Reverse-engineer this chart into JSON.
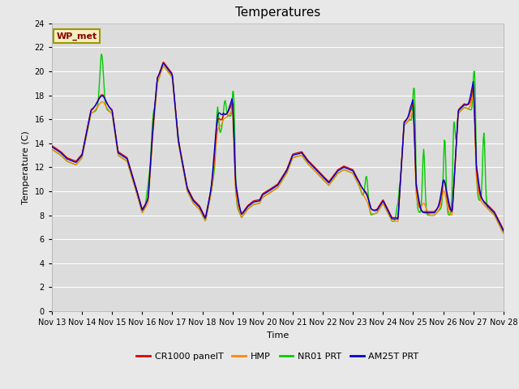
{
  "title": "Temperatures",
  "ylabel": "Temperature (C)",
  "xlabel": "Time",
  "station_label": "WP_met",
  "bg_color": "#e8e8e8",
  "plot_bg_color": "#dcdcdc",
  "grid_color": "#ffffff",
  "ylim": [
    0,
    24
  ],
  "yticks": [
    0,
    2,
    4,
    6,
    8,
    10,
    12,
    14,
    16,
    18,
    20,
    22,
    24
  ],
  "x_labels": [
    "Nov 13",
    "Nov 14",
    "Nov 15",
    "Nov 16",
    "Nov 17",
    "Nov 18",
    "Nov 19",
    "Nov 20",
    "Nov 21",
    "Nov 22",
    "Nov 23",
    "Nov 24",
    "Nov 25",
    "Nov 26",
    "Nov 27",
    "Nov 28"
  ],
  "colors": {
    "CR1000 panelT": "#dd0000",
    "HMP": "#ff8800",
    "NR01 PRT": "#00cc00",
    "AM25T PRT": "#0000cc"
  },
  "lw": 1.0,
  "title_fontsize": 11,
  "label_fontsize": 8,
  "tick_fontsize": 7,
  "legend_fontsize": 8,
  "figsize": [
    6.4,
    4.8
  ],
  "dpi": 100
}
